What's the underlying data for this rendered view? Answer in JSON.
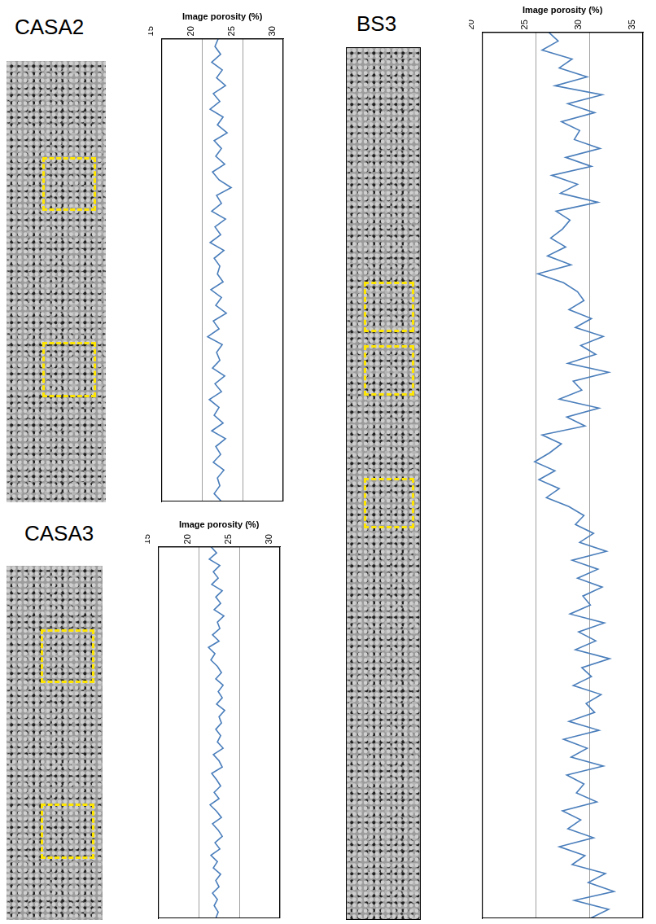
{
  "chart_data": [
    {
      "type": "line",
      "title": "CASA2",
      "x_label": "Image porosity (%)",
      "orientation": "horizontal",
      "xlim": [
        15,
        30
      ],
      "xticks": [
        15,
        20,
        25,
        30
      ],
      "grid": true,
      "tick_labels": "x",
      "color": "#4a7ebb",
      "values": [
        22,
        21.6,
        22.3,
        21.2,
        22.5,
        21.8,
        22.9,
        21.4,
        22.2,
        21,
        22.6,
        21.9,
        23.1,
        21.5,
        22.4,
        21.7,
        22.8,
        21.3,
        22.1,
        23.6,
        21.8,
        22.4,
        21.2,
        22.9,
        21.6,
        22.3,
        21,
        22.7,
        21.5,
        22.2,
        21.9,
        22.6,
        21.1,
        22.4,
        21.7,
        23,
        21.4,
        22.1,
        20.7,
        22.5,
        21.8,
        22.2,
        21.3,
        22.8,
        21.6,
        22.4,
        20.9,
        22.1,
        21.5,
        22.6,
        21.2,
        22.9,
        21.7,
        22.3,
        21.4,
        22.7,
        21.9,
        22.2,
        21.5,
        22.4
      ]
    },
    {
      "type": "line",
      "title": "CASA3",
      "x_label": "Image porosity (%)",
      "orientation": "horizontal",
      "xlim": [
        15,
        30
      ],
      "xticks": [
        15,
        20,
        25,
        30
      ],
      "grid": true,
      "tick_labels": "x",
      "color": "#4a7ebb",
      "values": [
        21.5,
        22.2,
        21.3,
        22.6,
        21.8,
        22.4,
        21.6,
        22.9,
        22.1,
        22.7,
        21.9,
        23.1,
        22.3,
        22.6,
        21.7,
        22.5,
        21.2,
        22,
        21.5,
        22.3,
        22.8,
        22.1,
        23,
        22.4,
        22.9,
        22.2,
        23.2,
        22.5,
        22.8,
        22.1,
        22.7,
        22.3,
        23,
        21.8,
        22.5,
        22.9,
        21.6,
        22.2,
        22.7,
        21.9,
        22.5,
        21.4,
        22.2,
        22.8,
        21.7,
        22.4,
        22.9,
        22,
        22.6,
        21.5,
        22.3,
        21.8,
        22.7,
        22.1,
        22.5,
        21.7,
        22.3,
        21.9,
        22.4,
        22.1
      ]
    },
    {
      "type": "line",
      "title": "BS3",
      "x_label": "Image porosity (%)",
      "orientation": "horizontal",
      "xlim": [
        20,
        35
      ],
      "xticks": [
        20,
        25,
        30,
        35
      ],
      "grid": true,
      "tick_labels": "x",
      "color": "#4a7ebb",
      "values": [
        26.2,
        27.1,
        25.6,
        28.4,
        27.2,
        29.8,
        26.8,
        31.2,
        28,
        30.5,
        27.4,
        29.1,
        28.6,
        31,
        27.8,
        30.2,
        26.5,
        28.9,
        27.3,
        30.8,
        26.9,
        28.2,
        27.5,
        26.4,
        27.8,
        26.1,
        28.3,
        25.2,
        27.6,
        28.9,
        29.5,
        28.1,
        30.2,
        28.7,
        31.3,
        29.2,
        30.6,
        28,
        31.8,
        28.5,
        29.3,
        27.2,
        30.9,
        27.9,
        29.6,
        25.6,
        27.4,
        26.3,
        24.9,
        26.8,
        25.3,
        27.2,
        26,
        28.1,
        29.5,
        28.7,
        30.4,
        29.1,
        31.6,
        28.4,
        30.8,
        28.9,
        31.2,
        29.4,
        30.1,
        28.2,
        31.4,
        29,
        30.6,
        28.7,
        31.9,
        29.3,
        30.2,
        28.5,
        31.1,
        29.7,
        30.5,
        28.1,
        30.9,
        27.6,
        29.8,
        28.3,
        31.3,
        27.9,
        29.5,
        28.8,
        30.7,
        27.5,
        29.2,
        28,
        30.4,
        27.2,
        29.6,
        28.4,
        31.5,
        29.9,
        32.3,
        28.6,
        31.8,
        30.1
      ]
    }
  ]
}
